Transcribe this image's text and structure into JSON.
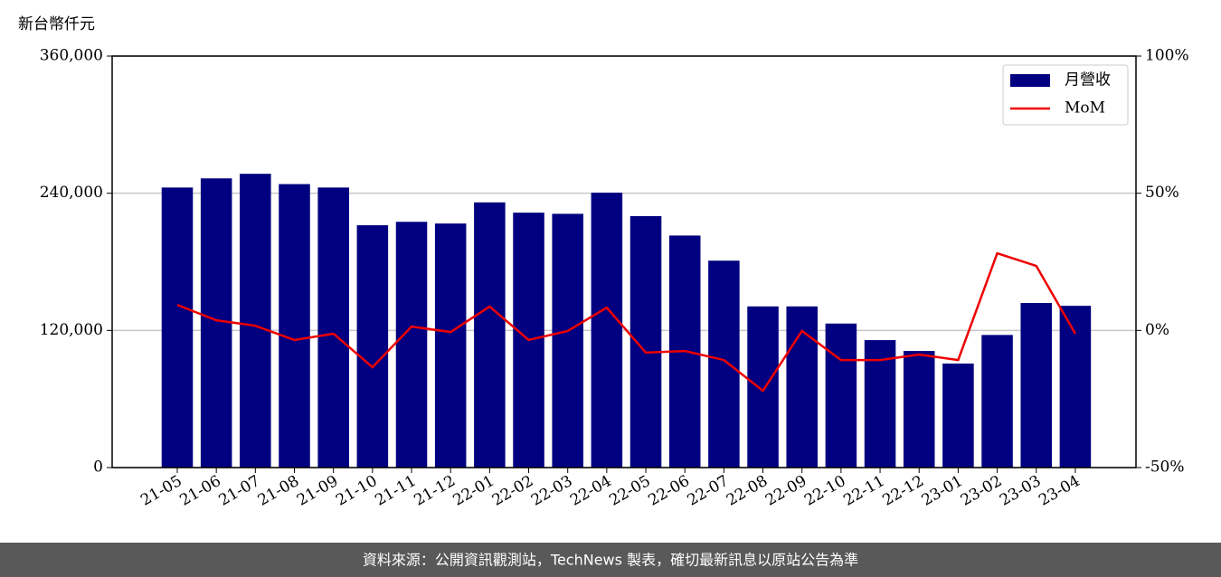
{
  "chart_data": {
    "type": "bar",
    "y_label": "新台幣仟元",
    "categories": [
      "21-05",
      "21-06",
      "21-07",
      "21-08",
      "21-09",
      "21-10",
      "21-11",
      "21-12",
      "22-01",
      "22-02",
      "22-03",
      "22-04",
      "22-05",
      "22-06",
      "22-07",
      "22-08",
      "22-09",
      "22-10",
      "22-11",
      "22-12",
      "23-01",
      "23-02",
      "23-03",
      "23-04"
    ],
    "series": [
      {
        "name": "月營收",
        "type": "bar",
        "color": "#000080",
        "axis": "y",
        "values": [
          245000,
          253000,
          257000,
          248000,
          245000,
          212000,
          215000,
          213500,
          232000,
          223000,
          222000,
          240500,
          220000,
          203000,
          181000,
          141000,
          141000,
          126000,
          111500,
          102000,
          91000,
          116000,
          144000,
          141500
        ]
      },
      {
        "name": "MoM",
        "type": "line",
        "color": "#ee0000",
        "axis": "y2",
        "values": [
          9.3,
          3.7,
          1.7,
          -3.5,
          -1.2,
          -13.4,
          1.4,
          -0.6,
          8.7,
          -3.5,
          -0.2,
          8.3,
          -8.1,
          -7.5,
          -10.8,
          -22.0,
          -0.2,
          -10.8,
          -10.8,
          -8.8,
          -10.8,
          28.1,
          23.5,
          -1.2
        ]
      }
    ],
    "ylim": [
      0,
      360000
    ],
    "yticks": [
      {
        "value": 0,
        "label": "0"
      },
      {
        "value": 120000,
        "label": "120,000"
      },
      {
        "value": 240000,
        "label": "240,000"
      },
      {
        "value": 360000,
        "label": "360,000"
      }
    ],
    "y2lim": [
      -50,
      100
    ],
    "y2ticks": [
      {
        "value": -50,
        "label": "-50%"
      },
      {
        "value": 0,
        "label": "0%"
      },
      {
        "value": 50,
        "label": "50%"
      },
      {
        "value": 100,
        "label": "100%"
      }
    ],
    "grid": true,
    "legend": "upper right",
    "footer": "資料來源：公開資訊觀測站，TechNews 製表，確切最新訊息以原站公告為準"
  }
}
